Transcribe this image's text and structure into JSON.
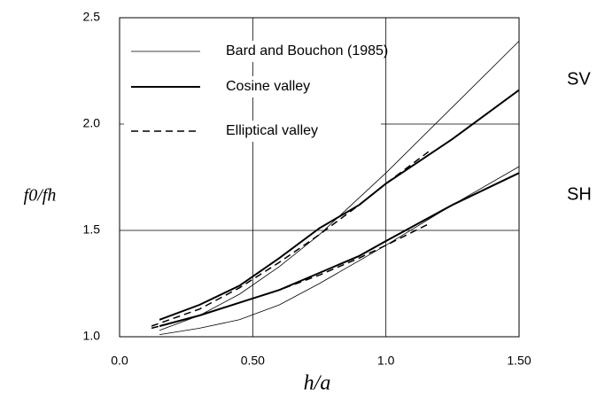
{
  "chart_data": {
    "type": "line",
    "xlabel": "h/a",
    "ylabel": "f0/fh",
    "xlim": [
      0,
      1.5
    ],
    "ylim": [
      1,
      2.5
    ],
    "xticks": [
      {
        "value": 0,
        "label": "0.0"
      },
      {
        "value": 0.5,
        "label": "0.50"
      },
      {
        "value": 1,
        "label": "1.0"
      },
      {
        "value": 1.5,
        "label": "1.50"
      }
    ],
    "yticks": [
      {
        "value": 1,
        "label": "1.0"
      },
      1.5,
      {
        "value": 2,
        "label": "2.0"
      },
      {
        "value": 2.5,
        "label": "2.5"
      }
    ],
    "grid": true,
    "legend": "upper left",
    "annotations": [
      {
        "text": "SV"
      },
      {
        "text": "SH"
      }
    ],
    "series": [
      {
        "name": "Bard and Bouchon (1985)",
        "color": "#000000",
        "width": 0.8,
        "dash": "none",
        "x": [
          0.15,
          0.3,
          0.45,
          0.6,
          0.75,
          1.0,
          1.25,
          1.5
        ],
        "sv": [
          1.03,
          1.1,
          1.2,
          1.33,
          1.48,
          1.77,
          2.08,
          2.39
        ],
        "sh": [
          1.01,
          1.04,
          1.08,
          1.15,
          1.25,
          1.43,
          1.62,
          1.8
        ]
      },
      {
        "name": "Cosine valley",
        "color": "#000000",
        "width": 2,
        "dash": "none",
        "x": [
          0.15,
          0.3,
          0.45,
          0.6,
          0.75,
          0.9,
          1.0,
          1.25,
          1.5
        ],
        "sv": [
          1.08,
          1.15,
          1.24,
          1.37,
          1.51,
          1.62,
          1.72,
          1.93,
          2.16
        ],
        "sh": [
          1.05,
          1.1,
          1.16,
          1.22,
          1.3,
          1.38,
          1.45,
          1.62,
          1.77
        ]
      },
      {
        "name": "Elliptical valley",
        "color": "#000000",
        "width": 1.5,
        "dash": "8 5",
        "x": [
          0.12,
          0.3,
          0.45,
          0.6,
          0.75,
          0.9,
          1.0,
          1.16
        ],
        "sv": [
          1.05,
          1.13,
          1.23,
          1.35,
          1.48,
          1.62,
          1.72,
          1.87
        ],
        "sh": [
          1.04,
          1.1,
          1.16,
          1.22,
          1.29,
          1.37,
          1.43,
          1.53
        ]
      }
    ]
  }
}
